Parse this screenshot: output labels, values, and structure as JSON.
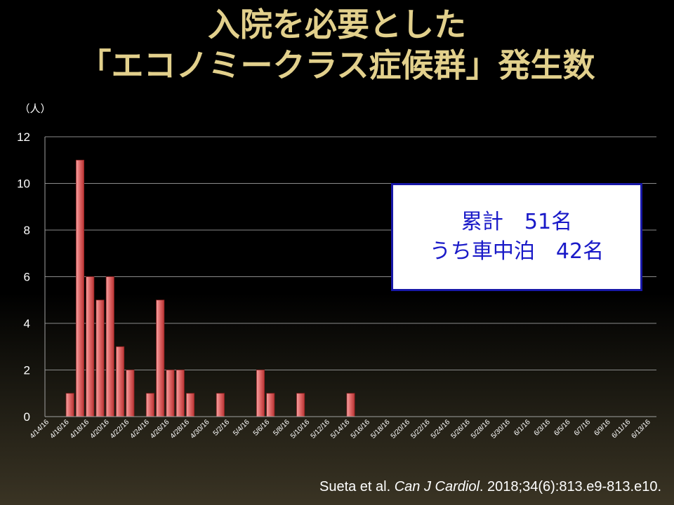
{
  "title": {
    "line1": "入院を必要とした",
    "line2": "「エコノミークラス症候群」発生数"
  },
  "infobox": {
    "line1": "累計　51名",
    "line2": "うち車中泊　42名"
  },
  "citation": {
    "authors": "Sueta et al. ",
    "journal": "Can J Cardiol",
    "details": ". 2018;34(6):813.e9-813.e10."
  },
  "colors": {
    "title": "#e2d08c",
    "bar": "#d04848",
    "infobox_text": "#1a1ac8",
    "infobox_border": "#1818a8"
  },
  "chart_data": {
    "type": "bar",
    "ylabel": "（人）",
    "ylim": [
      0,
      12
    ],
    "yticks": [
      0,
      2,
      4,
      6,
      8,
      10,
      12
    ],
    "grid": true,
    "categories": [
      "4/14/16",
      "4/15/16",
      "4/16/16",
      "4/17/16",
      "4/18/16",
      "4/19/16",
      "4/20/16",
      "4/21/16",
      "4/22/16",
      "4/23/16",
      "4/24/16",
      "4/25/16",
      "4/26/16",
      "4/27/16",
      "4/28/16",
      "4/29/16",
      "4/30/16",
      "5/1/16",
      "5/2/16",
      "5/3/16",
      "5/4/16",
      "5/5/16",
      "5/6/16",
      "5/7/16",
      "5/8/16",
      "5/9/16",
      "5/10/16",
      "5/11/16",
      "5/12/16",
      "5/13/16",
      "5/14/16",
      "5/15/16",
      "5/16/16",
      "5/17/16",
      "5/18/16",
      "5/19/16",
      "5/20/16",
      "5/21/16",
      "5/22/16",
      "5/23/16",
      "5/24/16",
      "5/25/16",
      "5/26/16",
      "5/27/16",
      "5/28/16",
      "5/29/16",
      "5/30/16",
      "5/31/16",
      "6/1/16",
      "6/2/16",
      "6/3/16",
      "6/4/16",
      "6/5/16",
      "6/6/16",
      "6/7/16",
      "6/8/16",
      "6/9/16",
      "6/10/16",
      "6/11/16",
      "6/12/16",
      "6/13/16"
    ],
    "xtick_labels": [
      "4/14/16",
      "4/16/16",
      "4/18/16",
      "4/20/16",
      "4/22/16",
      "4/24/16",
      "4/26/16",
      "4/28/16",
      "4/30/16",
      "5/2/16",
      "5/4/16",
      "5/6/16",
      "5/8/16",
      "5/10/16",
      "5/12/16",
      "5/14/16",
      "5/16/16",
      "5/18/16",
      "5/20/16",
      "5/22/16",
      "5/24/16",
      "5/26/16",
      "5/28/16",
      "5/30/16",
      "6/1/16",
      "6/3/16",
      "6/5/16",
      "6/7/16",
      "6/9/16",
      "6/11/16",
      "6/13/16"
    ],
    "values": [
      0,
      0,
      1,
      11,
      6,
      5,
      6,
      3,
      2,
      0,
      1,
      5,
      2,
      2,
      1,
      0,
      0,
      1,
      0,
      0,
      0,
      2,
      1,
      0,
      0,
      1,
      0,
      0,
      0,
      0,
      1,
      0,
      0,
      0,
      0,
      0,
      0,
      0,
      0,
      0,
      0,
      0,
      0,
      0,
      0,
      0,
      0,
      0,
      0,
      0,
      0,
      0,
      0,
      0,
      0,
      0,
      0,
      0,
      0,
      0,
      0
    ]
  }
}
